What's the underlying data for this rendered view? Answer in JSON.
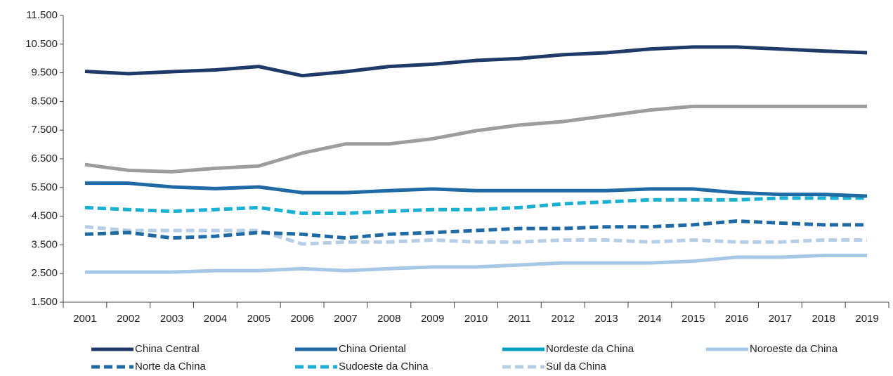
{
  "chart_data": {
    "type": "line",
    "categories": [
      "2001",
      "2002",
      "2003",
      "2004",
      "2005",
      "2006",
      "2007",
      "2008",
      "2009",
      "2010",
      "2011",
      "2012",
      "2013",
      "2014",
      "2015",
      "2016",
      "2017",
      "2018",
      "2019"
    ],
    "series": [
      {
        "name": "China Central",
        "color": "#1f3a68",
        "dash": false,
        "values": [
          9550,
          9470,
          9540,
          9600,
          9720,
          9400,
          9540,
          9720,
          9800,
          9930,
          10000,
          10130,
          10200,
          10330,
          10400,
          10400,
          10330,
          10260,
          10200
        ]
      },
      {
        "name": "China Oriental",
        "color": "#1f6aa5",
        "dash": false,
        "values": [
          5650,
          5650,
          5520,
          5460,
          5520,
          5320,
          5320,
          5390,
          5450,
          5390,
          5390,
          5390,
          5390,
          5450,
          5450,
          5320,
          5260,
          5260,
          5200
        ]
      },
      {
        "name": "Nordeste da China",
        "color": "#00a3c4",
        "dash": false,
        "values": [
          null,
          null,
          null,
          null,
          null,
          null,
          null,
          null,
          null,
          null,
          null,
          null,
          null,
          null,
          null,
          null,
          null,
          null,
          null
        ]
      },
      {
        "name": "Noroeste da China",
        "color": "#a6c8e6",
        "dash": false,
        "values": [
          2550,
          2550,
          2550,
          2600,
          2600,
          2670,
          2600,
          2670,
          2730,
          2730,
          2800,
          2870,
          2870,
          2870,
          2930,
          3070,
          3070,
          3130,
          3130
        ]
      },
      {
        "name": "Norte da China",
        "color": "#1f6aa5",
        "dash": true,
        "values": [
          3870,
          3930,
          3740,
          3800,
          3930,
          3870,
          3740,
          3870,
          3930,
          4000,
          4070,
          4070,
          4130,
          4130,
          4200,
          4330,
          4260,
          4200,
          4200
        ]
      },
      {
        "name": "Sudoeste da China",
        "color": "#1ab0d2",
        "dash": true,
        "values": [
          4800,
          4730,
          4670,
          4730,
          4800,
          4600,
          4600,
          4670,
          4730,
          4730,
          4800,
          4930,
          5000,
          5070,
          5070,
          5070,
          5130,
          5130,
          5130
        ]
      },
      {
        "name": "Sul da China",
        "color": "#b6cde6",
        "dash": true,
        "values": [
          4130,
          4000,
          4000,
          4000,
          4000,
          3530,
          3600,
          3600,
          3670,
          3600,
          3600,
          3670,
          3670,
          3600,
          3670,
          3600,
          3600,
          3670,
          3670
        ]
      },
      {
        "color": "#9d9d9d",
        "dash": false,
        "values": [
          6300,
          6100,
          6050,
          6170,
          6250,
          6700,
          7020,
          7020,
          7200,
          7480,
          7680,
          7800,
          8000,
          8200,
          8330,
          8330,
          8330,
          8330,
          8330
        ]
      }
    ],
    "ylim": [
      1500,
      11500
    ],
    "yticks": [
      {
        "value": 1500,
        "label": "1.500"
      },
      {
        "value": 2500,
        "label": "2.500"
      },
      {
        "value": 3500,
        "label": "3.500"
      },
      {
        "value": 4500,
        "label": "4.500"
      },
      {
        "value": 5500,
        "label": "5.500"
      },
      {
        "value": 6500,
        "label": "6.500"
      },
      {
        "value": 7500,
        "label": "7.500"
      },
      {
        "value": 8500,
        "label": "8.500"
      },
      {
        "value": 9500,
        "label": "9.500"
      },
      {
        "value": 10500,
        "label": "10.500"
      },
      {
        "value": 11500,
        "label": "11.500"
      }
    ],
    "grid": false
  }
}
